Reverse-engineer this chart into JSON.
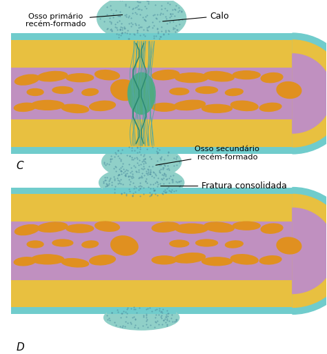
{
  "bg_color": "#ffffff",
  "label_C": "C",
  "label_D": "D",
  "text_calo": "Calo",
  "text_osso_primario": "Osso primário\nrecém-formado",
  "text_osso_secundario": "Osso secundário\nrecém-formado",
  "text_fratura": "Fratura consolidada",
  "col_bone": "#E8C040",
  "col_perio": "#70CCCC",
  "col_callus": "#90D0C8",
  "col_pink": "#C090C0",
  "col_orange": "#E09020",
  "col_frac_green": "#50AA80",
  "col_frac_teal": "#50A8A0",
  "col_outline": "#888844"
}
